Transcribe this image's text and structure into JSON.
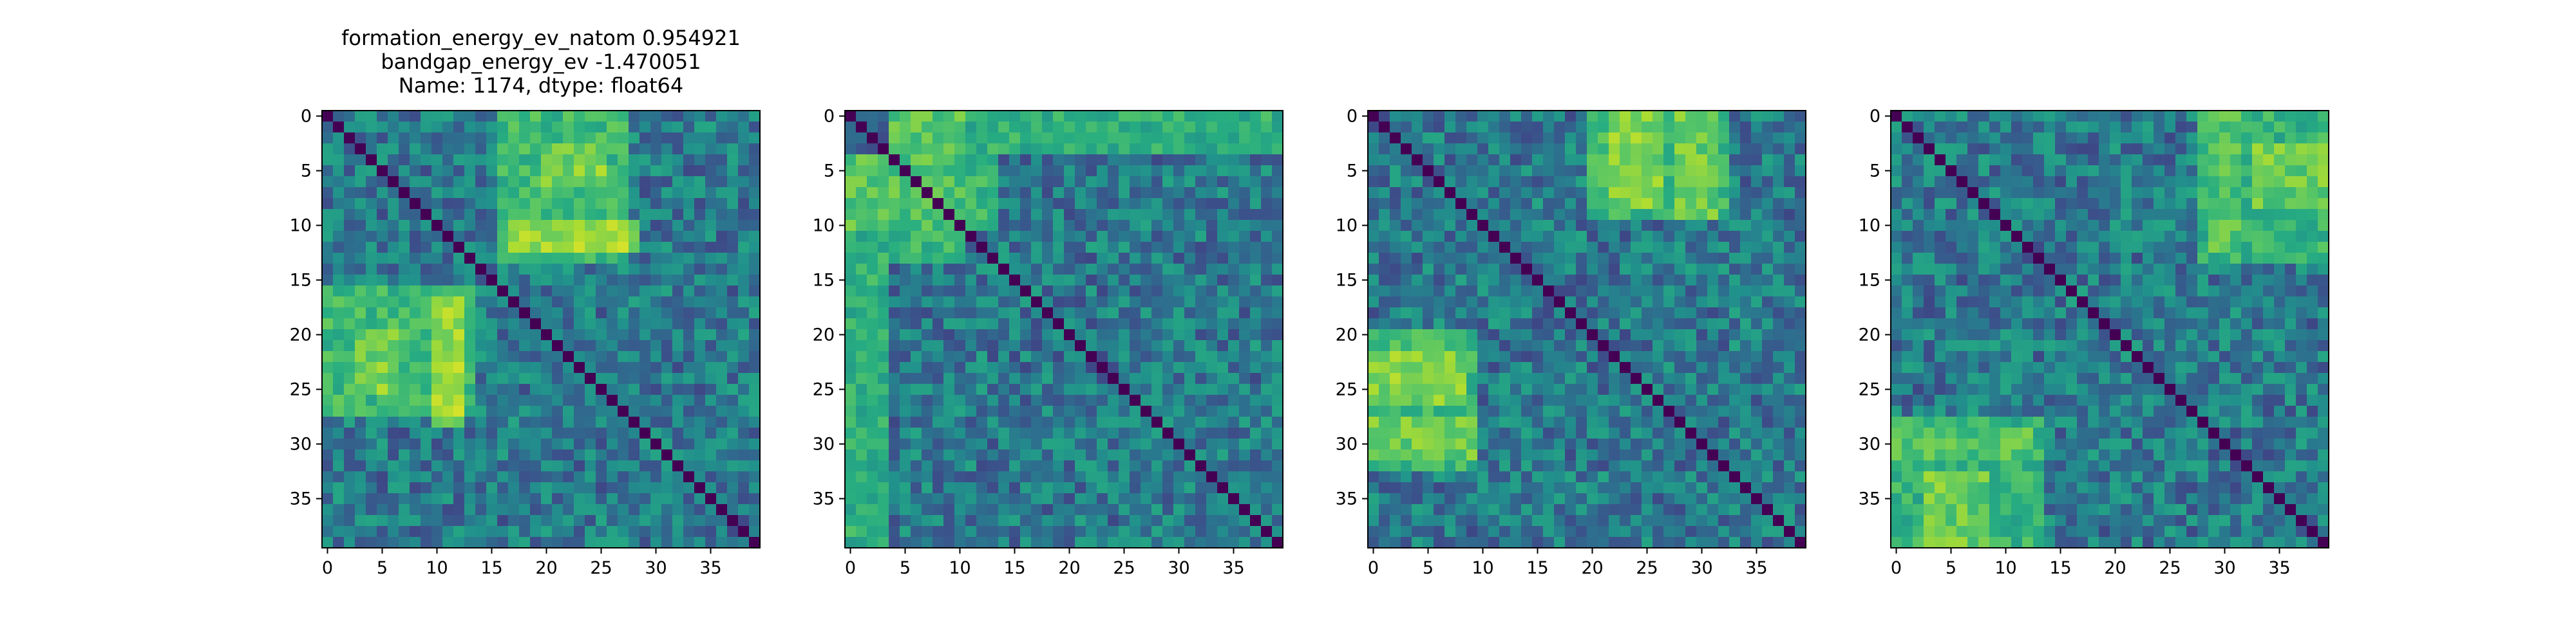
{
  "chart_data": [
    {
      "type": "heatmap",
      "title_lines": [
        "formation_energy_ev_natom    0.954921",
        "bandgap_energy_ev           -1.470051",
        "Name: 1174, dtype: float64"
      ],
      "colormap": "viridis",
      "size": 40,
      "xticks": [
        0,
        5,
        10,
        15,
        20,
        25,
        30,
        35
      ],
      "yticks": [
        0,
        5,
        10,
        15,
        20,
        25,
        30,
        35
      ],
      "diagonal_value": 0,
      "value_range": [
        0,
        1
      ],
      "blocks": [
        {
          "rows": [
            0,
            13
          ],
          "cols": [
            16,
            27
          ],
          "value": 0.72
        },
        {
          "rows": [
            16,
            27
          ],
          "cols": [
            0,
            13
          ],
          "value": 0.72
        },
        {
          "rows": [
            3,
            6
          ],
          "cols": [
            20,
            25
          ],
          "value": 0.85
        },
        {
          "rows": [
            10,
            12
          ],
          "cols": [
            17,
            28
          ],
          "value": 0.9
        },
        {
          "rows": [
            17,
            28
          ],
          "cols": [
            10,
            12
          ],
          "value": 0.9
        },
        {
          "rows": [
            20,
            25
          ],
          "cols": [
            3,
            6
          ],
          "value": 0.85
        }
      ]
    },
    {
      "type": "heatmap",
      "title_lines": [],
      "colormap": "viridis",
      "size": 40,
      "xticks": [
        0,
        5,
        10,
        15,
        20,
        25,
        30,
        35
      ],
      "yticks": [
        0,
        5,
        10,
        15,
        20,
        25,
        30,
        35
      ],
      "diagonal_value": 0,
      "value_range": [
        0,
        1
      ],
      "blocks": [
        {
          "rows": [
            0,
            3
          ],
          "cols": [
            4,
            39
          ],
          "value": 0.68
        },
        {
          "rows": [
            4,
            39
          ],
          "cols": [
            0,
            3
          ],
          "value": 0.68
        },
        {
          "rows": [
            0,
            9
          ],
          "cols": [
            4,
            10
          ],
          "value": 0.78
        },
        {
          "rows": [
            4,
            10
          ],
          "cols": [
            0,
            9
          ],
          "value": 0.78
        },
        {
          "rows": [
            11,
            13
          ],
          "cols": [
            4,
            10
          ],
          "value": 0.7
        },
        {
          "rows": [
            4,
            10
          ],
          "cols": [
            11,
            13
          ],
          "value": 0.7
        }
      ]
    },
    {
      "type": "heatmap",
      "title_lines": [],
      "colormap": "viridis",
      "size": 40,
      "xticks": [
        0,
        5,
        10,
        15,
        20,
        25,
        30,
        35
      ],
      "yticks": [
        0,
        5,
        10,
        15,
        20,
        25,
        30,
        35
      ],
      "diagonal_value": 0,
      "value_range": [
        0,
        1
      ],
      "blocks": [
        {
          "rows": [
            0,
            9
          ],
          "cols": [
            20,
            32
          ],
          "value": 0.72
        },
        {
          "rows": [
            20,
            32
          ],
          "cols": [
            0,
            9
          ],
          "value": 0.72
        },
        {
          "rows": [
            0,
            8
          ],
          "cols": [
            22,
            26
          ],
          "value": 0.85
        },
        {
          "rows": [
            22,
            26
          ],
          "cols": [
            0,
            8
          ],
          "value": 0.85
        },
        {
          "rows": [
            28,
            31
          ],
          "cols": [
            0,
            9
          ],
          "value": 0.82
        },
        {
          "rows": [
            0,
            9
          ],
          "cols": [
            28,
            31
          ],
          "value": 0.82
        }
      ]
    },
    {
      "type": "heatmap",
      "title_lines": [],
      "colormap": "viridis",
      "size": 40,
      "xticks": [
        0,
        5,
        10,
        15,
        20,
        25,
        30,
        35
      ],
      "yticks": [
        0,
        5,
        10,
        15,
        20,
        25,
        30,
        35
      ],
      "diagonal_value": 0,
      "value_range": [
        0,
        1
      ],
      "blocks": [
        {
          "rows": [
            0,
            13
          ],
          "cols": [
            28,
            39
          ],
          "value": 0.7
        },
        {
          "rows": [
            28,
            39
          ],
          "cols": [
            0,
            13
          ],
          "value": 0.7
        },
        {
          "rows": [
            3,
            8
          ],
          "cols": [
            33,
            39
          ],
          "value": 0.82
        },
        {
          "rows": [
            33,
            39
          ],
          "cols": [
            3,
            8
          ],
          "value": 0.82
        },
        {
          "rows": [
            29,
            31
          ],
          "cols": [
            0,
            12
          ],
          "value": 0.78
        },
        {
          "rows": [
            0,
            12
          ],
          "cols": [
            29,
            31
          ],
          "value": 0.78
        }
      ]
    }
  ]
}
